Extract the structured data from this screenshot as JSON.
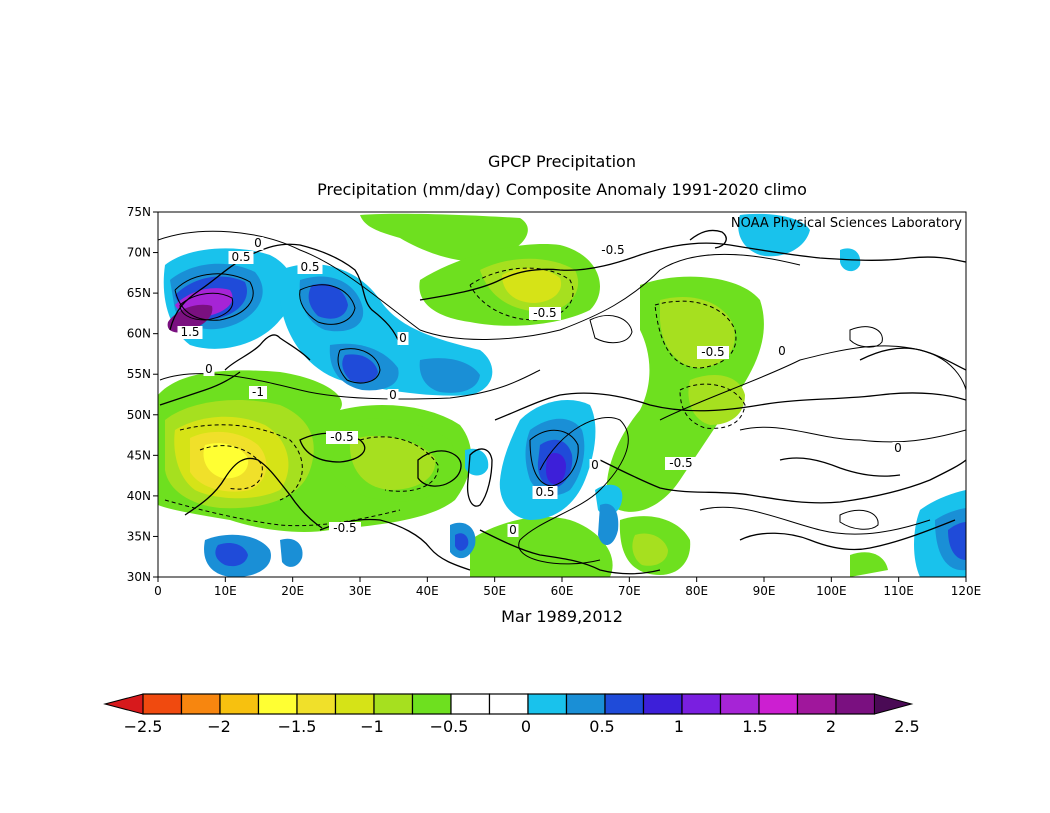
{
  "title": "GPCP Precipitation",
  "subtitle": "Precipitation (mm/day) Composite Anomaly 1991-2020 climo",
  "credit": "NOAA Physical Sciences Laboratory",
  "xlabel": "Mar 1989,2012",
  "lat_ticks": [
    "30N",
    "35N",
    "40N",
    "45N",
    "50N",
    "55N",
    "60N",
    "65N",
    "70N",
    "75N"
  ],
  "lon_ticks": [
    "0",
    "10E",
    "20E",
    "30E",
    "40E",
    "50E",
    "60E",
    "70E",
    "80E",
    "90E",
    "100E",
    "110E",
    "120E"
  ],
  "colorbar": {
    "colors": [
      "#d7191c",
      "#f04a0f",
      "#f7860f",
      "#f7c10f",
      "#ffff33",
      "#f0e02a",
      "#d6e317",
      "#a6e01f",
      "#6ee01f",
      "#ffffff",
      "#ffffff",
      "#19c2ec",
      "#1a8fd6",
      "#1f4bd9",
      "#3d1fd9",
      "#7a1fe0",
      "#a624d6",
      "#cc1fd1",
      "#a0179c",
      "#7a1080",
      "#4a0a55"
    ],
    "labels": [
      "-2.5",
      "-2",
      "-1.5",
      "-1",
      "-0.5",
      "0",
      "0.5",
      "1",
      "1.5",
      "2",
      "2.5"
    ]
  },
  "contour_labels": [
    "0",
    "0.5",
    "0.5",
    "1.5",
    "-1",
    "0",
    "-0.5",
    "-0.5",
    "0",
    "-0.5",
    "-0.5",
    "0",
    "0.5",
    "0",
    "-0.5",
    "0",
    "0",
    "0",
    "-0.5"
  ],
  "chart_data": {
    "type": "heatmap",
    "title": "GPCP Precipitation",
    "subtitle": "Precipitation (mm/day) Composite Anomaly 1991-2020 climo",
    "xlabel": "Mar 1989,2012",
    "xlim": [
      0,
      120
    ],
    "ylim": [
      30,
      75
    ],
    "levels": [
      -2.5,
      -2,
      -1.5,
      -1,
      -0.5,
      0,
      0.5,
      1,
      1.5,
      2,
      2.5
    ],
    "regions": [
      {
        "lon": 5,
        "lat": 63,
        "value": 2.5
      },
      {
        "lon": 12,
        "lat": 66,
        "value": 1.5
      },
      {
        "lon": 26,
        "lat": 65,
        "value": 1.0
      },
      {
        "lon": 30,
        "lat": 56,
        "value": 1.0
      },
      {
        "lon": 58,
        "lat": 43,
        "value": 1.0
      },
      {
        "lon": 10,
        "lat": 43,
        "value": -1.5
      },
      {
        "lon": 35,
        "lat": 45,
        "value": -0.5
      },
      {
        "lon": 55,
        "lat": 66,
        "value": -1.0
      },
      {
        "lon": 82,
        "lat": 55,
        "value": -0.5
      },
      {
        "lon": 118,
        "lat": 36,
        "value": 1.0
      }
    ]
  }
}
